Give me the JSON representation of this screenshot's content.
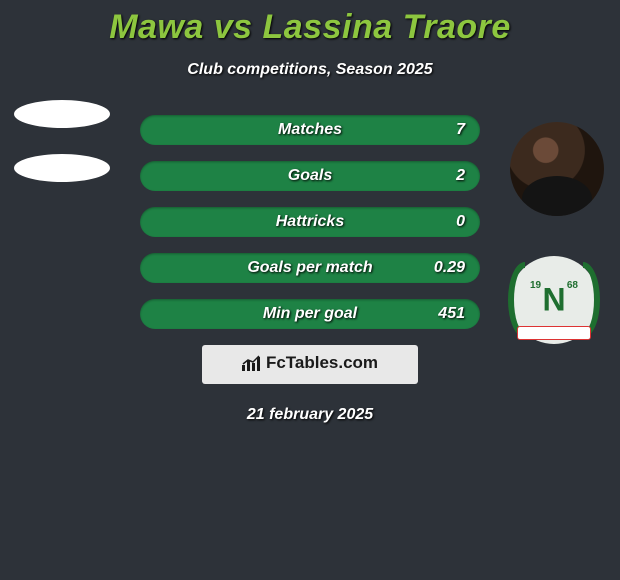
{
  "header": {
    "title": "Mawa vs Lassina Traore",
    "subtitle": "Club competitions, Season 2025",
    "title_color": "#8dc63f",
    "title_fontsize": 34
  },
  "stats": {
    "pill_color": "#1e8245",
    "rows": [
      {
        "label": "Matches",
        "right": "7"
      },
      {
        "label": "Goals",
        "right": "2"
      },
      {
        "label": "Hattricks",
        "right": "0"
      },
      {
        "label": "Goals per match",
        "right": "0.29"
      },
      {
        "label": "Min per goal",
        "right": "451"
      }
    ]
  },
  "footer": {
    "brand": "FcTables.com",
    "date": "21 february 2025"
  },
  "badge": {
    "year_left": "19",
    "year_right": "68",
    "letter": "N"
  },
  "colors": {
    "background": "#2d3239"
  }
}
